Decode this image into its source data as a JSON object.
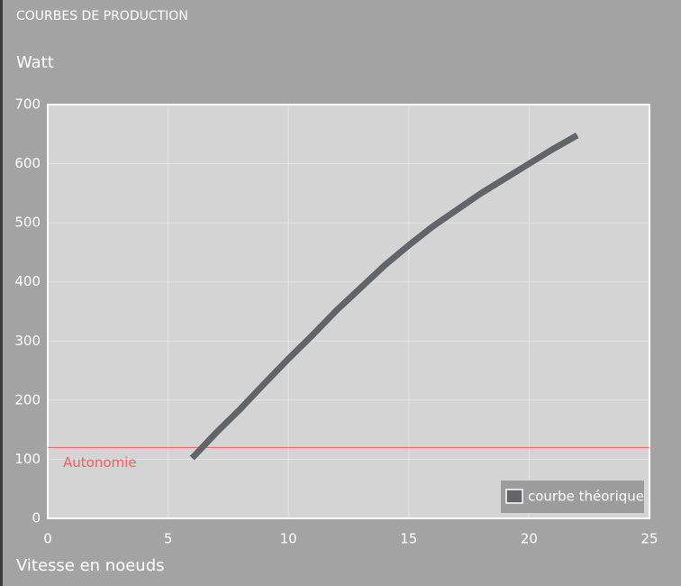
{
  "chart_data": {
    "type": "line",
    "title": "COURBES DE PRODUCTION",
    "y_label": "Watt",
    "x_label": "Vitesse en noeuds",
    "x": [
      6,
      7,
      8,
      9,
      10,
      11,
      12,
      13,
      14,
      15,
      16,
      17,
      18,
      19,
      20,
      21,
      22
    ],
    "series": [
      {
        "name": "courbe théorique",
        "color": "#626468",
        "values": [
          102,
          145,
          185,
          228,
          270,
          310,
          352,
          390,
          428,
          462,
          494,
          522,
          550,
          575,
          600,
          625,
          648
        ]
      }
    ],
    "xlim": [
      0,
      25
    ],
    "xticks": [
      0,
      5,
      10,
      15,
      20,
      25
    ],
    "ylim": [
      0,
      700
    ],
    "yticks": [
      0,
      100,
      200,
      300,
      400,
      500,
      600,
      700
    ],
    "reference_line": {
      "value": 120,
      "label": "Autonomie",
      "color": "#f06060"
    },
    "grid": true,
    "legend": "bottom-right"
  }
}
